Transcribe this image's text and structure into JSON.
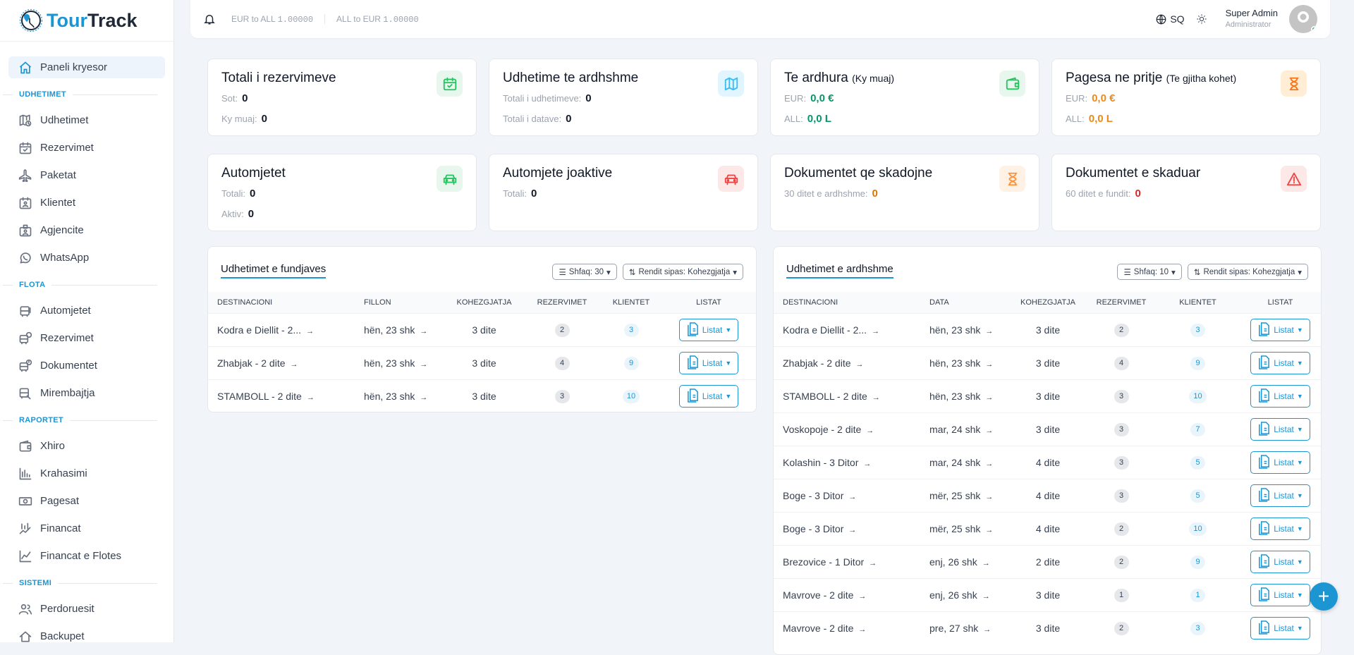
{
  "app": {
    "name_a": "Tour",
    "name_b": "Track"
  },
  "header": {
    "eur_to_all_label": "EUR to ALL",
    "eur_to_all": "1.00000",
    "all_to_eur_label": "ALL to EUR",
    "all_to_eur": "1.00000",
    "language": "SQ",
    "user_name": "Super Admin",
    "user_role": "Administrator"
  },
  "sidebar": {
    "home": "Paneli kryesor",
    "sections": [
      {
        "title": "UDHETIMET",
        "items": [
          {
            "label": "Udhetimet",
            "icon": "map-clock-icon"
          },
          {
            "label": "Rezervimet",
            "icon": "calendar-check-icon"
          },
          {
            "label": "Paketat",
            "icon": "plane-icon"
          },
          {
            "label": "Klientet",
            "icon": "contact-calendar-icon"
          },
          {
            "label": "Agjencite",
            "icon": "badge-icon"
          },
          {
            "label": "WhatsApp",
            "icon": "whatsapp-icon"
          }
        ]
      },
      {
        "title": "FLOTA",
        "items": [
          {
            "label": "Automjetet",
            "icon": "bus-icon"
          },
          {
            "label": "Rezervimet",
            "icon": "bus-clock-icon"
          },
          {
            "label": "Dokumentet",
            "icon": "bus-alert-icon"
          },
          {
            "label": "Mirembajtja",
            "icon": "bus-wrench-icon"
          }
        ]
      },
      {
        "title": "RAPORTET",
        "items": [
          {
            "label": "Xhiro",
            "icon": "wallet-icon"
          },
          {
            "label": "Krahasimi",
            "icon": "bar-chart-icon"
          },
          {
            "label": "Pagesat",
            "icon": "cash-icon"
          },
          {
            "label": "Financat",
            "icon": "chart-trend-icon"
          },
          {
            "label": "Financat e Flotes",
            "icon": "line-chart-icon"
          }
        ]
      },
      {
        "title": "SISTEMI",
        "items": [
          {
            "label": "Perdoruesit",
            "icon": "users-icon"
          },
          {
            "label": "Backupet",
            "icon": "backup-icon"
          }
        ]
      }
    ]
  },
  "cards": [
    {
      "title": "Totali i rezervimeve",
      "sub": "",
      "icon": "calendar-check-icon",
      "color": "#22c55e",
      "bg": "#e8f7ee",
      "rows": [
        {
          "label": "Sot:",
          "value": "0"
        },
        {
          "label": "Ky muaj:",
          "value": "0"
        }
      ]
    },
    {
      "title": "Udhetime te ardhshme",
      "sub": "",
      "icon": "map-icon",
      "color": "#38bdf8",
      "bg": "#e0f5fe",
      "rows": [
        {
          "label": "Totali i udhetimeve:",
          "value": "0"
        },
        {
          "label": "Totali i datave:",
          "value": "0"
        }
      ]
    },
    {
      "title": "Te ardhura",
      "sub": "(Ky muaj)",
      "icon": "wallet-icon",
      "color": "#22c55e",
      "bg": "#e8f7ee",
      "value_color": "#059669",
      "rows": [
        {
          "label": "EUR:",
          "value": "0,0 €"
        },
        {
          "label": "ALL:",
          "value": "0,0 L"
        }
      ]
    },
    {
      "title": "Pagesa ne pritje",
      "sub": "(Te gjitha kohet)",
      "icon": "hourglass-icon",
      "color": "#f97316",
      "bg": "#ffedd5",
      "value_color": "#ea8a1a",
      "rows": [
        {
          "label": "EUR:",
          "value": "0,0 €"
        },
        {
          "label": "ALL:",
          "value": "0,0 L"
        }
      ]
    },
    {
      "title": "Automjetet",
      "sub": "",
      "icon": "car-icon",
      "color": "#22c55e",
      "bg": "#e8f7ee",
      "rows": [
        {
          "label": "Totali:",
          "value": "0"
        },
        {
          "label": "Aktiv:",
          "value": "0"
        }
      ]
    },
    {
      "title": "Automjete joaktive",
      "sub": "",
      "icon": "car-icon",
      "color": "#ef4444",
      "bg": "#fde8e8",
      "rows": [
        {
          "label": "Totali:",
          "value": "0"
        }
      ]
    },
    {
      "title": "Dokumentet qe skadojne",
      "sub": "",
      "icon": "hourglass-icon",
      "color": "#fb923c",
      "bg": "#fff1e4",
      "value_color": "#d97706",
      "rows": [
        {
          "label": "30 ditet e ardhshme:",
          "value": "0"
        }
      ]
    },
    {
      "title": "Dokumentet e skaduar",
      "sub": "",
      "icon": "alert-triangle-icon",
      "color": "#ef4444",
      "bg": "#fde8e8",
      "value_color": "#dc2626",
      "rows": [
        {
          "label": "60 ditet e fundit:",
          "value": "0"
        }
      ]
    }
  ],
  "weekend": {
    "title": "Udhetimet e fundjaves",
    "show": "Shfaq: 30",
    "sort": "Rendit sipas: Kohezgjatja",
    "columns": [
      "DESTINACIONI",
      "FILLON",
      "KOHEZGJATJA",
      "REZERVIMET",
      "KLIENTET",
      "LISTAT"
    ],
    "rows": [
      [
        "Kodra e Diellit - 2...",
        "hën, 23 shk",
        "3 dite",
        "2",
        "3"
      ],
      [
        "Zhabjak - 2 dite",
        "hën, 23 shk",
        "3 dite",
        "4",
        "9"
      ],
      [
        "STAMBOLL - 2 dite",
        "hën, 23 shk",
        "3 dite",
        "3",
        "10"
      ]
    ]
  },
  "upcoming": {
    "title": "Udhetimet e ardhshme",
    "show": "Shfaq: 10",
    "sort": "Rendit sipas: Kohezgjatja",
    "columns": [
      "DESTINACIONI",
      "DATA",
      "KOHEZGJATJA",
      "REZERVIMET",
      "KLIENTET",
      "LISTAT"
    ],
    "rows": [
      [
        "Kodra e Diellit - 2...",
        "hën, 23 shk",
        "3 dite",
        "2",
        "3"
      ],
      [
        "Zhabjak - 2 dite",
        "hën, 23 shk",
        "3 dite",
        "4",
        "9"
      ],
      [
        "STAMBOLL - 2 dite",
        "hën, 23 shk",
        "3 dite",
        "3",
        "10"
      ],
      [
        "Voskopoje - 2 dite",
        "mar, 24 shk",
        "3 dite",
        "3",
        "7"
      ],
      [
        "Kolashin - 3 Ditor",
        "mar, 24 shk",
        "4 dite",
        "3",
        "5"
      ],
      [
        "Boge - 3 Ditor",
        "mër, 25 shk",
        "4 dite",
        "3",
        "5"
      ],
      [
        "Boge - 3 Ditor",
        "mër, 25 shk",
        "4 dite",
        "2",
        "10"
      ],
      [
        "Brezovice - 1 Ditor",
        "enj, 26 shk",
        "2 dite",
        "2",
        "9"
      ],
      [
        "Mavrove - 2 dite",
        "enj, 26 shk",
        "3 dite",
        "1",
        "1"
      ],
      [
        "Mavrove - 2 dite",
        "pre, 27 shk",
        "3 dite",
        "2",
        "3"
      ]
    ]
  },
  "listat_label": "Listat",
  "fab": "+"
}
